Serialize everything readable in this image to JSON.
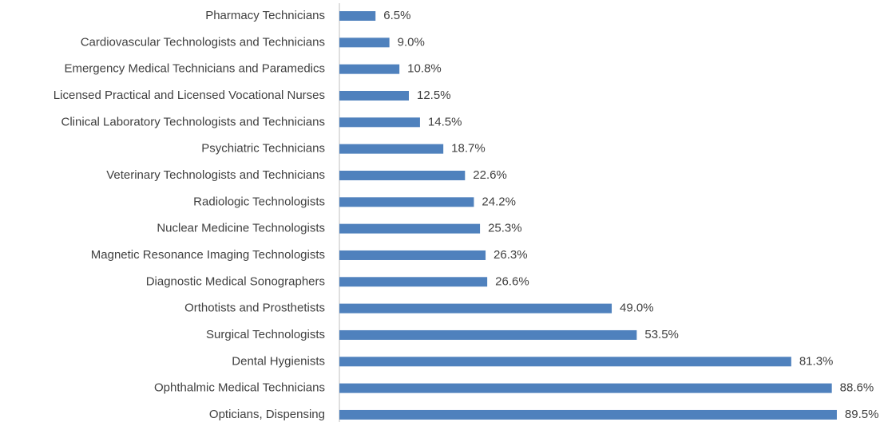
{
  "chart_data": {
    "type": "bar",
    "orientation": "horizontal",
    "color": "#4f81bd",
    "categories": [
      "Pharmacy Technicians",
      "Cardiovascular Technologists and Technicians",
      "Emergency Medical Technicians and Paramedics",
      "Licensed Practical and Licensed Vocational Nurses",
      "Clinical Laboratory Technologists and Technicians",
      "Psychiatric Technicians",
      "Veterinary Technologists and Technicians",
      "Radiologic Technologists",
      "Nuclear Medicine Technologists",
      "Magnetic Resonance Imaging Technologists",
      "Diagnostic Medical Sonographers",
      "Orthotists and Prosthetists",
      "Surgical Technologists",
      "Dental Hygienists",
      "Ophthalmic Medical Technicians",
      "Opticians, Dispensing"
    ],
    "values": [
      6.5,
      9.0,
      10.8,
      12.5,
      14.5,
      18.7,
      22.6,
      24.2,
      25.3,
      26.3,
      26.6,
      49.0,
      53.5,
      81.3,
      88.6,
      89.5
    ],
    "value_labels": [
      "6.5%",
      "9.0%",
      "10.8%",
      "12.5%",
      "14.5%",
      "18.7%",
      "22.6%",
      "24.2%",
      "25.3%",
      "26.3%",
      "26.6%",
      "49.0%",
      "53.5%",
      "81.3%",
      "88.6%",
      "89.5%"
    ]
  }
}
